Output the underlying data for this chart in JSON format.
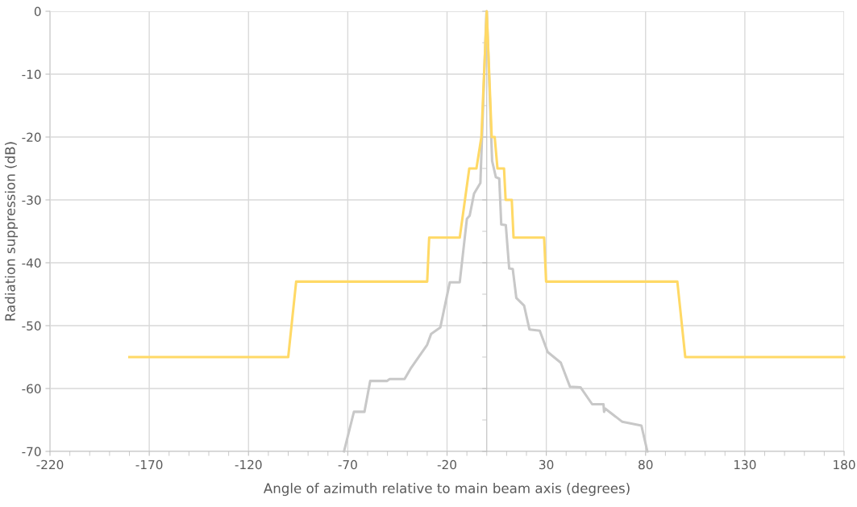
{
  "chart_data": {
    "type": "line",
    "xlabel": "Angle of azimuth relative to main beam axis (degrees)",
    "ylabel": "Radiation suppression (dB)",
    "xlim": [
      -220,
      180
    ],
    "ylim": [
      -70,
      0
    ],
    "xticks": [
      -220,
      -170,
      -120,
      -70,
      -20,
      30,
      80,
      130,
      180
    ],
    "yticks": [
      -70,
      -60,
      -50,
      -40,
      -30,
      -20,
      -10,
      0
    ],
    "grid": true,
    "marker": "none",
    "line_style": "solid",
    "series": [
      {
        "color": "#c8c8c8",
        "x": [
          -71.9,
          -66.9,
          -61.6,
          -58.7,
          -50.3,
          -48.9,
          -41.4,
          -38.1,
          -30.1,
          -28,
          -23.4,
          -18.6,
          -13.6,
          -10,
          -8.6,
          -6.4,
          -3.2,
          -2.4,
          -0.2,
          0,
          2.7,
          4.6,
          6.3,
          7.3,
          9.6,
          11.3,
          13.1,
          14.9,
          18.8,
          21.5,
          26.7,
          30.7,
          37.3,
          41.9,
          47.2,
          53.1,
          58.8,
          59.1,
          59.7,
          68.3,
          77.9,
          80.9
        ],
        "values": [
          -70,
          -63.7,
          -63.7,
          -58.8,
          -58.8,
          -58.5,
          -58.5,
          -56.7,
          -53.1,
          -51.3,
          -50.3,
          -43.1,
          -43.1,
          -33,
          -32.5,
          -29,
          -27.3,
          -20.1,
          -0.5,
          0,
          -23.8,
          -26.4,
          -26.6,
          -33.9,
          -34,
          -40.9,
          -41,
          -45.6,
          -46.8,
          -50.6,
          -50.8,
          -54.2,
          -55.9,
          -59.7,
          -59.8,
          -62.5,
          -62.5,
          -63.7,
          -63.2,
          -65.3,
          -65.9,
          -70
        ]
      },
      {
        "color": "#ffd966",
        "x": [
          -180,
          -100,
          -96,
          -30,
          -29,
          -13.6,
          -8.8,
          -5.2,
          -2.7,
          0,
          2.5,
          4,
          5.4,
          8.7,
          9.5,
          12.6,
          13.5,
          28.9,
          29.9,
          96,
          100,
          180
        ],
        "values": [
          -55,
          -55,
          -43,
          -43,
          -36,
          -36,
          -25,
          -25,
          -20,
          0,
          -20,
          -20,
          -25,
          -25,
          -30,
          -30,
          -36,
          -36,
          -43,
          -43,
          -55,
          -55
        ]
      }
    ]
  }
}
